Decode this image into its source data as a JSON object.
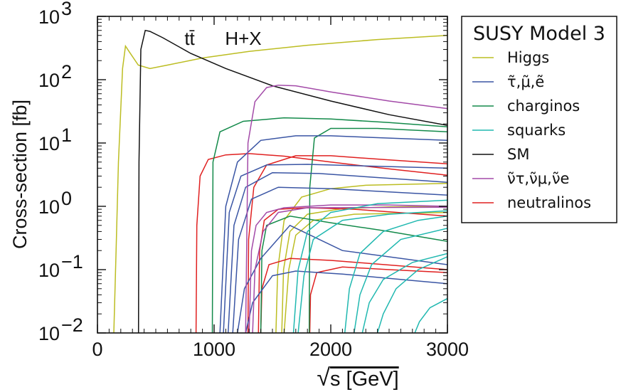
{
  "chart_data": {
    "type": "line",
    "xlabel": "√s [GeV]",
    "xlabel_radical": "√",
    "xlabel_rest": "s [GeV]",
    "ylabel": "Cross-section [fb]",
    "xlim": [
      0,
      3000
    ],
    "ylim": [
      0.01,
      1000
    ],
    "yscale": "log",
    "grid": false,
    "x_ticks": [
      "0",
      "1000",
      "2000",
      "3000"
    ],
    "y_ticks": [
      {
        "base": "10",
        "exp": "3"
      },
      {
        "base": "10",
        "exp": "2"
      },
      {
        "base": "10",
        "exp": "1"
      },
      {
        "base": "10",
        "exp": "0"
      },
      {
        "base": "10",
        "exp": "−1"
      },
      {
        "base": "10",
        "exp": "−2"
      }
    ],
    "annotations": [
      {
        "text": "tt̄",
        "x": 790,
        "y": 450
      },
      {
        "text": "H+X",
        "x": 1250,
        "y": 450
      }
    ],
    "legend": {
      "title": "SUSY Model 3",
      "placement": "outside-right",
      "entries": [
        {
          "label": "Higgs",
          "color": "#bcbd22"
        },
        {
          "label": "τ̃,μ̃,ẽ",
          "color": "#3a55a4"
        },
        {
          "label": "charginos",
          "color": "#138a4a"
        },
        {
          "label": "squarks",
          "color": "#20b8b0"
        },
        {
          "label": "SM",
          "color": "#111111"
        },
        {
          "label": "ν̃τ,ν̃μ,ν̃e",
          "color": "#a34aa8"
        },
        {
          "label": "neutralinos",
          "color": "#e02020"
        }
      ]
    },
    "series": [
      {
        "group": "Higgs",
        "color": "#bcbd22",
        "points": [
          [
            140,
            0.01
          ],
          [
            160,
            0.2
          ],
          [
            180,
            5
          ],
          [
            215,
            150
          ],
          [
            240,
            340
          ],
          [
            270,
            280
          ],
          [
            350,
            170
          ],
          [
            450,
            150
          ],
          [
            600,
            170
          ],
          [
            900,
            220
          ],
          [
            1300,
            280
          ],
          [
            1800,
            350
          ],
          [
            2400,
            430
          ],
          [
            3000,
            500
          ]
        ]
      },
      {
        "group": "SM",
        "color": "#111111",
        "points": [
          [
            352,
            0.01
          ],
          [
            356,
            5
          ],
          [
            372,
            300
          ],
          [
            410,
            600
          ],
          [
            450,
            580
          ],
          [
            560,
            460
          ],
          [
            800,
            260
          ],
          [
            1100,
            150
          ],
          [
            1500,
            80
          ],
          [
            2000,
            46
          ],
          [
            2500,
            28
          ],
          [
            3000,
            19
          ]
        ]
      },
      {
        "group": "Higgs",
        "color": "#bcbd22",
        "points": [
          [
            1530,
            0.01
          ],
          [
            1545,
            0.1
          ],
          [
            1600,
            0.6
          ],
          [
            1750,
            1.4
          ],
          [
            2000,
            1.9
          ],
          [
            2300,
            2.15
          ],
          [
            3000,
            2.3
          ]
        ]
      },
      {
        "group": "Higgs",
        "color": "#bcbd22",
        "points": [
          [
            1580,
            0.01
          ],
          [
            1595,
            0.1
          ],
          [
            1650,
            0.4
          ],
          [
            1800,
            0.75
          ],
          [
            2100,
            0.92
          ],
          [
            2500,
            0.98
          ],
          [
            3000,
            1.0
          ]
        ]
      },
      {
        "group": "Higgs",
        "color": "#bcbd22",
        "points": [
          [
            1600,
            0.01
          ],
          [
            1640,
            0.1
          ],
          [
            1700,
            0.35
          ],
          [
            1850,
            0.6
          ],
          [
            2200,
            0.75
          ],
          [
            3000,
            0.8
          ]
        ]
      },
      {
        "group": "neutralinos",
        "color": "#e02020",
        "points": [
          [
            845,
            0.01
          ],
          [
            852,
            0.5
          ],
          [
            880,
            3
          ],
          [
            950,
            5.5
          ],
          [
            1100,
            6.5
          ],
          [
            1300,
            6.8
          ],
          [
            1600,
            6.2
          ],
          [
            2000,
            5.0
          ],
          [
            2500,
            3.9
          ],
          [
            3000,
            3.1
          ]
        ]
      },
      {
        "group": "neutralinos",
        "color": "#e02020",
        "points": [
          [
            1290,
            0.01
          ],
          [
            1296,
            0.3
          ],
          [
            1340,
            2
          ],
          [
            1450,
            4.5
          ],
          [
            1700,
            6.3
          ],
          [
            2000,
            6.3
          ],
          [
            2500,
            5.4
          ],
          [
            3000,
            4.7
          ]
        ]
      },
      {
        "group": "neutralinos",
        "color": "#e02020",
        "points": [
          [
            1380,
            0.01
          ],
          [
            1390,
            0.2
          ],
          [
            1430,
            0.6
          ],
          [
            1550,
            0.9
          ],
          [
            1800,
            0.95
          ],
          [
            2200,
            0.9
          ],
          [
            3000,
            0.7
          ]
        ]
      },
      {
        "group": "neutralinos",
        "color": "#e02020",
        "points": [
          [
            1400,
            0.01
          ],
          [
            1410,
            0.05
          ],
          [
            1470,
            0.12
          ],
          [
            1650,
            0.15
          ],
          [
            2000,
            0.14
          ],
          [
            3000,
            0.1
          ]
        ]
      },
      {
        "group": "neutralinos",
        "color": "#e02020",
        "points": [
          [
            1820,
            0.01
          ],
          [
            1826,
            0.04
          ],
          [
            1880,
            0.09
          ],
          [
            2100,
            0.11
          ],
          [
            2500,
            0.1
          ],
          [
            3000,
            0.09
          ]
        ]
      },
      {
        "group": "charginos",
        "color": "#138a4a",
        "points": [
          [
            985,
            0.01
          ],
          [
            990,
            5
          ],
          [
            1050,
            15
          ],
          [
            1250,
            22
          ],
          [
            1600,
            25
          ],
          [
            2000,
            24
          ],
          [
            2500,
            21
          ],
          [
            3000,
            18
          ]
        ]
      },
      {
        "group": "charginos",
        "color": "#138a4a",
        "points": [
          [
            1815,
            0.01
          ],
          [
            1820,
            2
          ],
          [
            1860,
            12
          ],
          [
            2000,
            17
          ],
          [
            2400,
            17
          ],
          [
            3000,
            15
          ]
        ]
      },
      {
        "group": "charginos",
        "color": "#138a4a",
        "points": [
          [
            1400,
            0.01
          ],
          [
            1410,
            0.2
          ],
          [
            1450,
            0.5
          ],
          [
            1650,
            0.7
          ],
          [
            2000,
            0.55
          ],
          [
            2500,
            0.4
          ],
          [
            3000,
            0.28
          ]
        ]
      },
      {
        "group": "τ̃,μ̃,ẽ",
        "color": "#3a55a4",
        "points": [
          [
            1050,
            0.01
          ],
          [
            1100,
            1
          ],
          [
            1200,
            5
          ],
          [
            1400,
            11
          ],
          [
            1700,
            13
          ],
          [
            2000,
            13
          ],
          [
            3000,
            11
          ]
        ]
      },
      {
        "group": "τ̃,μ̃,ẽ",
        "color": "#3a55a4",
        "points": [
          [
            1080,
            0.01
          ],
          [
            1130,
            0.8
          ],
          [
            1230,
            3
          ],
          [
            1450,
            4.5
          ],
          [
            1800,
            4.6
          ],
          [
            3000,
            4.0
          ]
        ]
      },
      {
        "group": "τ̃,μ̃,ẽ",
        "color": "#3a55a4",
        "points": [
          [
            1120,
            0.01
          ],
          [
            1170,
            0.5
          ],
          [
            1270,
            2
          ],
          [
            1500,
            3.4
          ],
          [
            1900,
            3.3
          ],
          [
            3000,
            2.4
          ]
        ]
      },
      {
        "group": "τ̃,μ̃,ẽ",
        "color": "#3a55a4",
        "points": [
          [
            1160,
            0.01
          ],
          [
            1210,
            0.3
          ],
          [
            1320,
            1.3
          ],
          [
            1550,
            2.0
          ],
          [
            2000,
            1.9
          ],
          [
            3000,
            1.5
          ]
        ]
      },
      {
        "group": "τ̃,μ̃,ẽ",
        "color": "#3a55a4",
        "points": [
          [
            1200,
            0.01
          ],
          [
            1260,
            0.05
          ],
          [
            1400,
            0.15
          ],
          [
            1650,
            0.5
          ],
          [
            2100,
            0.2
          ],
          [
            3000,
            0.12
          ]
        ]
      },
      {
        "group": "τ̃,μ̃,ẽ",
        "color": "#3a55a4",
        "points": [
          [
            1270,
            0.01
          ],
          [
            1330,
            0.03
          ],
          [
            1500,
            0.08
          ],
          [
            1700,
            0.095
          ],
          [
            2100,
            0.085
          ],
          [
            3000,
            0.06
          ]
        ]
      },
      {
        "group": "ν̃τ,ν̃μ,ν̃e",
        "color": "#a34aa8",
        "points": [
          [
            1270,
            0.01
          ],
          [
            1290,
            10
          ],
          [
            1350,
            45
          ],
          [
            1450,
            75
          ],
          [
            1550,
            82
          ],
          [
            1700,
            80
          ],
          [
            2000,
            64
          ],
          [
            2500,
            46
          ],
          [
            3000,
            35
          ]
        ]
      },
      {
        "group": "ν̃τ,ν̃μ,ν̃e",
        "color": "#a34aa8",
        "points": [
          [
            1300,
            0.01
          ],
          [
            1320,
            0.2
          ],
          [
            1360,
            0.5
          ],
          [
            1450,
            0.8
          ],
          [
            1600,
            0.95
          ],
          [
            2000,
            1.05
          ],
          [
            2500,
            1.05
          ],
          [
            3000,
            1.0
          ]
        ]
      },
      {
        "group": "ν̃τ,ν̃μ,ν̃e",
        "color": "#a34aa8",
        "points": [
          [
            1330,
            0.01
          ],
          [
            1350,
            0.1
          ],
          [
            1420,
            0.4
          ],
          [
            1550,
            0.8
          ],
          [
            1800,
            0.95
          ],
          [
            3000,
            0.97
          ]
        ]
      },
      {
        "group": "squarks",
        "color": "#20b8b0",
        "points": [
          [
            1680,
            0.01
          ],
          [
            1720,
            0.1
          ],
          [
            1800,
            0.4
          ],
          [
            2000,
            0.8
          ],
          [
            2400,
            1.1
          ],
          [
            3000,
            1.25
          ]
        ]
      },
      {
        "group": "squarks",
        "color": "#20b8b0",
        "points": [
          [
            1720,
            0.01
          ],
          [
            1770,
            0.08
          ],
          [
            1850,
            0.3
          ],
          [
            2100,
            0.6
          ],
          [
            2500,
            0.75
          ],
          [
            3000,
            0.85
          ]
        ]
      },
      {
        "group": "squarks",
        "color": "#20b8b0",
        "points": [
          [
            2120,
            0.01
          ],
          [
            2160,
            0.05
          ],
          [
            2250,
            0.18
          ],
          [
            2450,
            0.4
          ],
          [
            2750,
            0.6
          ],
          [
            3000,
            0.7
          ]
        ]
      },
      {
        "group": "squarks",
        "color": "#20b8b0",
        "points": [
          [
            2200,
            0.01
          ],
          [
            2250,
            0.04
          ],
          [
            2350,
            0.12
          ],
          [
            2600,
            0.3
          ],
          [
            3000,
            0.45
          ]
        ]
      },
      {
        "group": "squarks",
        "color": "#20b8b0",
        "points": [
          [
            2270,
            0.01
          ],
          [
            2330,
            0.03
          ],
          [
            2450,
            0.07
          ],
          [
            2700,
            0.13
          ],
          [
            3000,
            0.18
          ]
        ]
      },
      {
        "group": "squarks",
        "color": "#20b8b0",
        "points": [
          [
            2400,
            0.01
          ],
          [
            2450,
            0.02
          ],
          [
            2560,
            0.05
          ],
          [
            2750,
            0.1
          ],
          [
            3000,
            0.16
          ]
        ]
      },
      {
        "group": "squarks",
        "color": "#20b8b0",
        "points": [
          [
            2720,
            0.01
          ],
          [
            2760,
            0.015
          ],
          [
            2850,
            0.025
          ],
          [
            3000,
            0.035
          ]
        ]
      }
    ]
  }
}
